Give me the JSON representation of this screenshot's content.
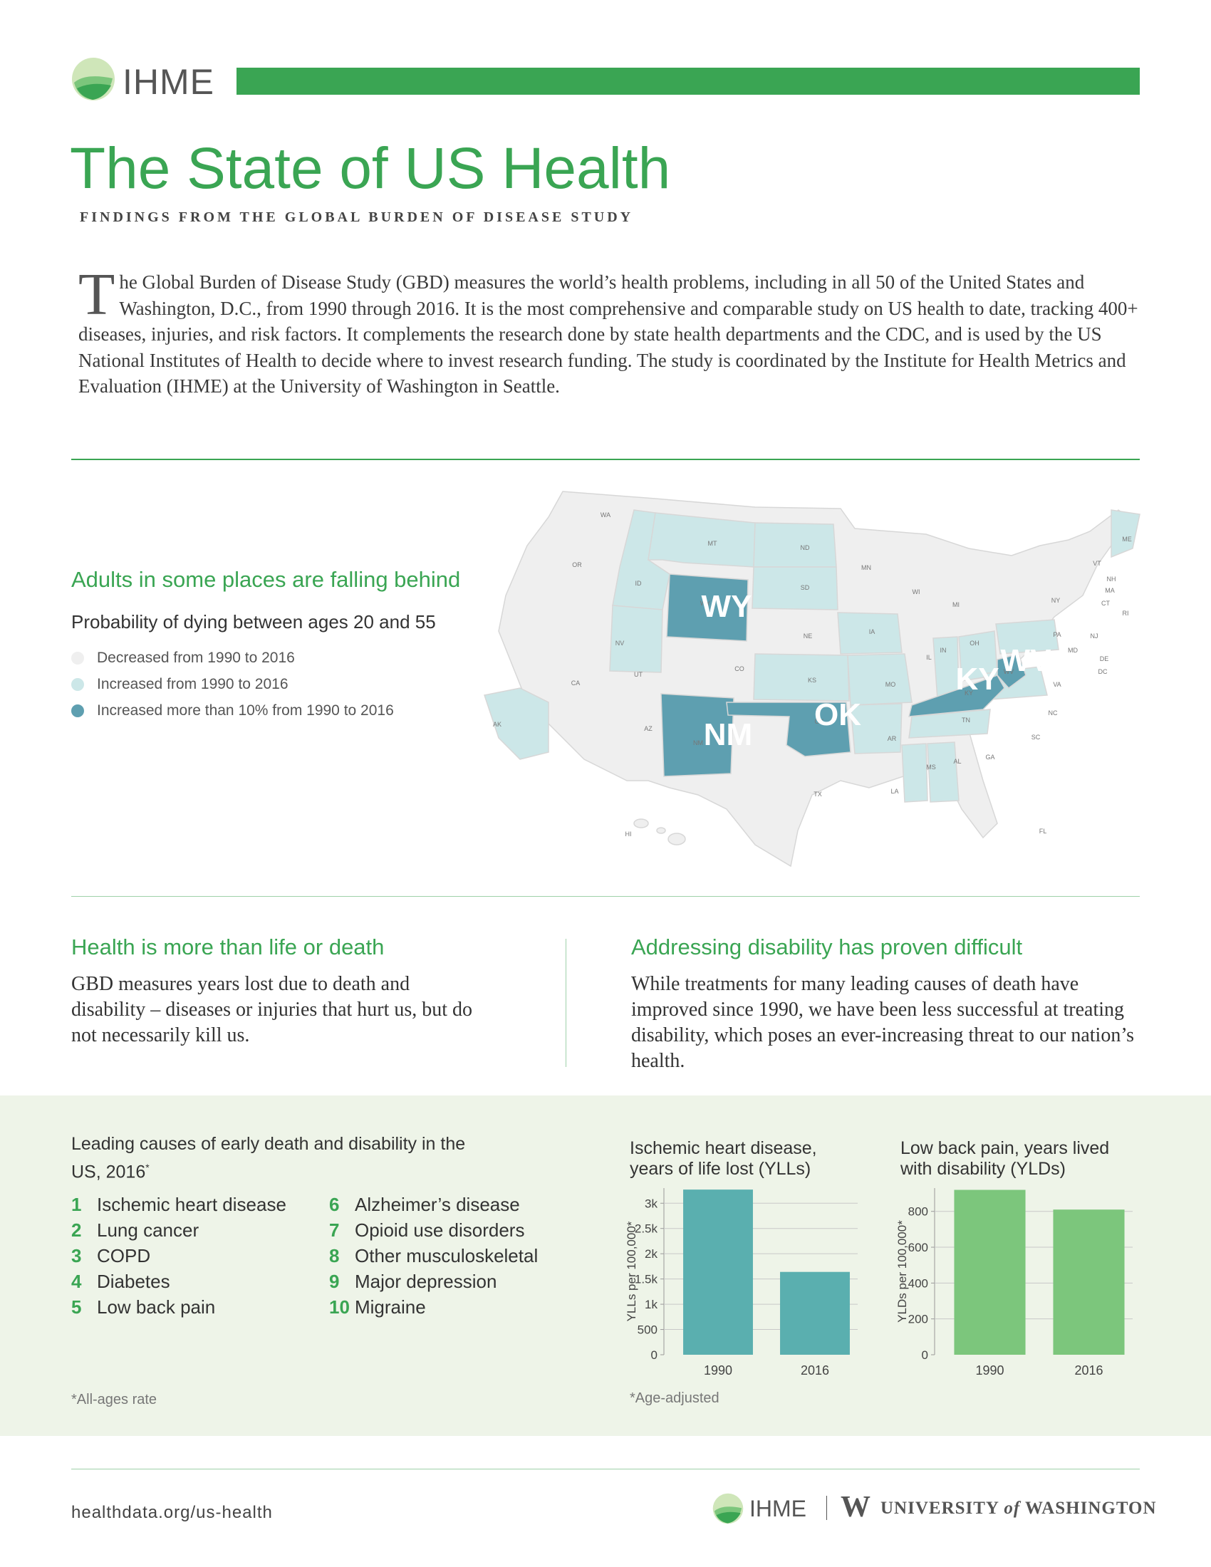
{
  "header": {
    "logo_text": "IHME",
    "title": "The State of US Health",
    "subtitle": "FINDINGS FROM THE GLOBAL BURDEN OF DISEASE STUDY",
    "accent_color": "#3aa553"
  },
  "intro": {
    "dropcap": "T",
    "text": "he Global Burden of Disease Study (GBD) measures the world’s health problems, including in all 50 of the United States and Washington, D.C., from 1990 through 2016. It is the most comprehensive and comparable study on US health to date, tracking 400+ diseases, injuries, and risk factors. It complements the research done by state health departments and the CDC, and is used by the US National Institutes of Health to decide where to invest research funding. The study is coordinated by the Institute for Health Metrics and Evaluation (IHME) at the University of Washington in Seattle."
  },
  "map_section": {
    "heading": "Adults in some places are falling behind",
    "subheading": "Probability of dying between ages 20 and 55",
    "legend": [
      {
        "label": "Decreased from 1990 to 2016",
        "color": "#efefef"
      },
      {
        "label": "Increased from 1990 to 2016",
        "color": "#cce7e8"
      },
      {
        "label": "Increased more than 10% from 1990 to 2016",
        "color": "#5e9fb0"
      }
    ],
    "small_labels": [
      "WA",
      "OR",
      "CA",
      "NV",
      "ID",
      "MT",
      "WY",
      "UT",
      "AZ",
      "CO",
      "NM",
      "ND",
      "SD",
      "NE",
      "KS",
      "OK",
      "TX",
      "MN",
      "IA",
      "MO",
      "AR",
      "LA",
      "WI",
      "IL",
      "MI",
      "IN",
      "OH",
      "KY",
      "TN",
      "MS",
      "AL",
      "GA",
      "FL",
      "SC",
      "NC",
      "VA",
      "WV",
      "PA",
      "NY",
      "VT",
      "NH",
      "ME",
      "MA",
      "CT",
      "RI",
      "NJ",
      "MD",
      "DE",
      "DC",
      "AK",
      "HI"
    ],
    "big_labels": [
      "WY",
      "NM",
      "OK",
      "KY",
      "WV"
    ]
  },
  "columns": {
    "left_heading": "Health is more than life or death",
    "left_text": "GBD measures years lost due to death and disability – diseases or injuries that hurt us, but do not necessarily kill us.",
    "right_heading": "Addressing disability has proven difficult",
    "right_text": "While treatments for many leading causes of death have improved since 1990, we have been less successful at treating disability, which poses an ever-increasing threat to our nation’s health."
  },
  "causes": {
    "title": "Leading causes of early death and disability in the US, 2016",
    "title_mark": "*",
    "items": [
      {
        "n": "1",
        "label": "Ischemic heart disease"
      },
      {
        "n": "2",
        "label": "Lung cancer"
      },
      {
        "n": "3",
        "label": "COPD"
      },
      {
        "n": "4",
        "label": "Diabetes"
      },
      {
        "n": "5",
        "label": "Low back pain"
      },
      {
        "n": "6",
        "label": "Alzheimer’s disease"
      },
      {
        "n": "7",
        "label": "Opioid use disorders"
      },
      {
        "n": "8",
        "label": "Other musculoskeletal"
      },
      {
        "n": "9",
        "label": "Major depression"
      },
      {
        "n": "10",
        "label": "Migraine"
      }
    ],
    "footnote": "*All-ages rate"
  },
  "chart_data": [
    {
      "type": "bar",
      "title": "Ischemic heart disease, years of life lost (YLLs)",
      "categories": [
        "1990",
        "2016"
      ],
      "values": [
        3270,
        1640
      ],
      "ylabel": "YLLs per 100,000*",
      "ylim": [
        0,
        3300
      ],
      "yticks": [
        0,
        500,
        1000,
        1500,
        2000,
        2500,
        3000
      ],
      "ytick_labels": [
        "0",
        "500",
        "1k",
        "1.5k",
        "2k",
        "2.5k",
        "3k"
      ],
      "color": "#5aafaf",
      "grid": true,
      "footnote": "*Age-adjusted"
    },
    {
      "type": "bar",
      "title": "Low back pain, years lived with disability (YLDs)",
      "categories": [
        "1990",
        "2016"
      ],
      "values": [
        920,
        810
      ],
      "ylabel": "YLDs per 100,000*",
      "ylim": [
        0,
        930
      ],
      "yticks": [
        0,
        200,
        400,
        600,
        800
      ],
      "ytick_labels": [
        "0",
        "200",
        "400",
        "600",
        "800"
      ],
      "color": "#7cc67c",
      "grid": true
    }
  ],
  "footer": {
    "url": "healthdata.org/us-health",
    "ihme": "IHME",
    "uw_mark": "W",
    "uw_pre": "UNIVERSITY",
    "uw_of": "of",
    "uw_post": "WASHINGTON"
  }
}
